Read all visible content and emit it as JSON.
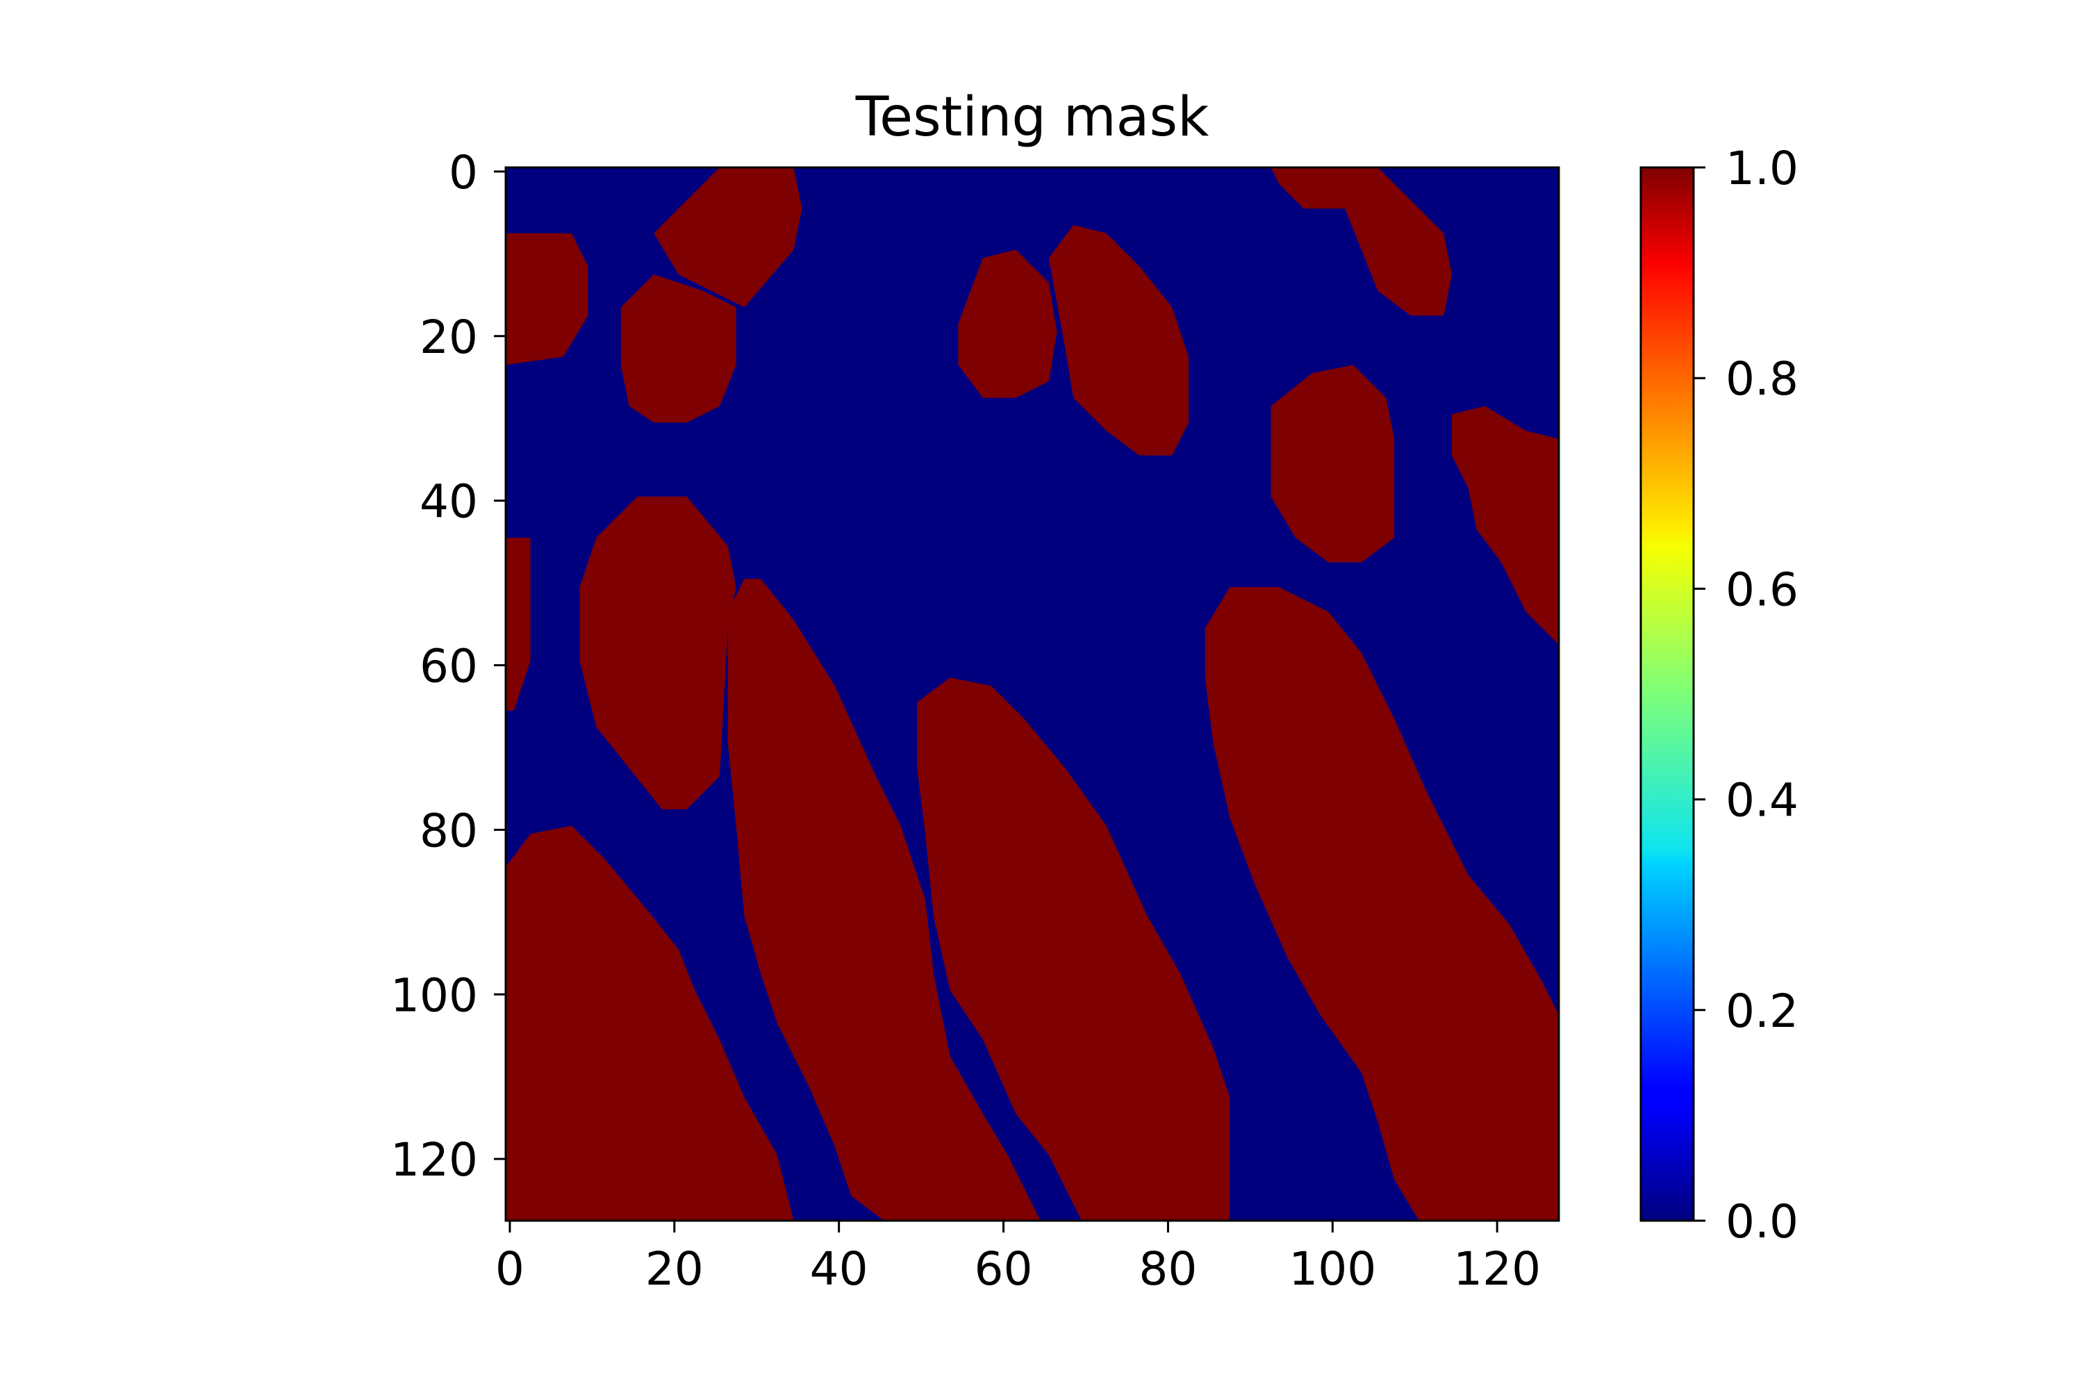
{
  "chart_data": {
    "type": "heatmap",
    "title": "Testing mask",
    "xlabel": "",
    "ylabel": "",
    "grid": false,
    "colormap": "jet",
    "image_shape": [
      128,
      128
    ],
    "xlim": [
      -0.5,
      127.5
    ],
    "ylim": [
      127.5,
      -0.5
    ],
    "x_ticks": [
      0,
      20,
      40,
      60,
      80,
      100,
      120
    ],
    "x_tick_labels": [
      "0",
      "20",
      "40",
      "60",
      "80",
      "100",
      "120"
    ],
    "y_ticks": [
      0,
      20,
      40,
      60,
      80,
      100,
      120
    ],
    "y_tick_labels": [
      "0",
      "20",
      "40",
      "60",
      "80",
      "100",
      "120"
    ],
    "colorbar": {
      "range": [
        0.0,
        1.0
      ],
      "ticks": [
        0.0,
        0.2,
        0.4,
        0.6,
        0.8,
        1.0
      ],
      "tick_labels": [
        "0.0",
        "0.2",
        "0.4",
        "0.6",
        "0.8",
        "1.0"
      ]
    },
    "value_colors": {
      "0": "#00007f",
      "1": "#7f0000"
    },
    "background_value": 0,
    "mask_regions_value_1": [
      {
        "name": "region-1",
        "polygon": [
          [
            0,
            8
          ],
          [
            8,
            8
          ],
          [
            10,
            12
          ],
          [
            10,
            18
          ],
          [
            7,
            23
          ],
          [
            0,
            24
          ]
        ]
      },
      {
        "name": "region-2",
        "polygon": [
          [
            18,
            8
          ],
          [
            26,
            0
          ],
          [
            35,
            0
          ],
          [
            36,
            5
          ],
          [
            35,
            10
          ],
          [
            29,
            17
          ],
          [
            21,
            13
          ]
        ]
      },
      {
        "name": "region-3",
        "polygon": [
          [
            14,
            17
          ],
          [
            18,
            13
          ],
          [
            24,
            15
          ],
          [
            28,
            17
          ],
          [
            28,
            24
          ],
          [
            26,
            29
          ],
          [
            22,
            31
          ],
          [
            18,
            31
          ],
          [
            15,
            29
          ],
          [
            14,
            24
          ]
        ]
      },
      {
        "name": "region-4",
        "polygon": [
          [
            55,
            19
          ],
          [
            58,
            11
          ],
          [
            62,
            10
          ],
          [
            66,
            14
          ],
          [
            67,
            20
          ],
          [
            66,
            26
          ],
          [
            62,
            28
          ],
          [
            58,
            28
          ],
          [
            55,
            24
          ]
        ]
      },
      {
        "name": "region-5",
        "polygon": [
          [
            66,
            11
          ],
          [
            69,
            7
          ],
          [
            73,
            8
          ],
          [
            77,
            12
          ],
          [
            81,
            17
          ],
          [
            83,
            23
          ],
          [
            83,
            31
          ],
          [
            81,
            35
          ],
          [
            77,
            35
          ],
          [
            73,
            32
          ],
          [
            69,
            28
          ],
          [
            68,
            22
          ]
        ]
      },
      {
        "name": "region-6",
        "polygon": [
          [
            93,
            0
          ],
          [
            106,
            0
          ],
          [
            111,
            5
          ],
          [
            114,
            8
          ],
          [
            115,
            13
          ],
          [
            114,
            18
          ],
          [
            110,
            18
          ],
          [
            106,
            15
          ],
          [
            104,
            10
          ],
          [
            102,
            5
          ],
          [
            97,
            5
          ],
          [
            94,
            2
          ]
        ]
      },
      {
        "name": "region-7",
        "polygon": [
          [
            93,
            29
          ],
          [
            98,
            25
          ],
          [
            103,
            24
          ],
          [
            107,
            28
          ],
          [
            108,
            33
          ],
          [
            108,
            45
          ],
          [
            104,
            48
          ],
          [
            100,
            48
          ],
          [
            96,
            45
          ],
          [
            93,
            40
          ]
        ]
      },
      {
        "name": "region-8",
        "polygon": [
          [
            115,
            30
          ],
          [
            119,
            29
          ],
          [
            124,
            32
          ],
          [
            128,
            33
          ],
          [
            128,
            58
          ],
          [
            124,
            54
          ],
          [
            121,
            48
          ],
          [
            118,
            44
          ],
          [
            117,
            39
          ],
          [
            115,
            35
          ]
        ]
      },
      {
        "name": "region-9",
        "polygon": [
          [
            0,
            45
          ],
          [
            3,
            45
          ],
          [
            3,
            60
          ],
          [
            1,
            66
          ],
          [
            0,
            66
          ]
        ]
      },
      {
        "name": "region-10",
        "polygon": [
          [
            9,
            51
          ],
          [
            11,
            45
          ],
          [
            16,
            40
          ],
          [
            22,
            40
          ],
          [
            27,
            46
          ],
          [
            28,
            51
          ],
          [
            27,
            56
          ],
          [
            26,
            74
          ],
          [
            22,
            78
          ],
          [
            19,
            78
          ],
          [
            15,
            73
          ],
          [
            11,
            68
          ],
          [
            9,
            60
          ]
        ]
      },
      {
        "name": "region-11",
        "polygon": [
          [
            27,
            54
          ],
          [
            29,
            50
          ],
          [
            31,
            50
          ],
          [
            35,
            55
          ],
          [
            40,
            63
          ],
          [
            45,
            74
          ],
          [
            48,
            80
          ],
          [
            51,
            89
          ],
          [
            52,
            98
          ],
          [
            54,
            108
          ],
          [
            58,
            115
          ],
          [
            61,
            120
          ],
          [
            65,
            128
          ],
          [
            46,
            128
          ],
          [
            42,
            125
          ],
          [
            40,
            119
          ],
          [
            37,
            112
          ],
          [
            33,
            104
          ],
          [
            31,
            98
          ],
          [
            29,
            91
          ],
          [
            28,
            80
          ],
          [
            27,
            70
          ]
        ]
      },
      {
        "name": "region-12",
        "polygon": [
          [
            50,
            65
          ],
          [
            54,
            62
          ],
          [
            59,
            63
          ],
          [
            63,
            67
          ],
          [
            68,
            73
          ],
          [
            73,
            80
          ],
          [
            78,
            91
          ],
          [
            82,
            98
          ],
          [
            86,
            107
          ],
          [
            88,
            113
          ],
          [
            88,
            128
          ],
          [
            70,
            128
          ],
          [
            66,
            120
          ],
          [
            62,
            115
          ],
          [
            58,
            106
          ],
          [
            54,
            100
          ],
          [
            52,
            91
          ],
          [
            51,
            81
          ],
          [
            50,
            73
          ]
        ]
      },
      {
        "name": "region-13",
        "polygon": [
          [
            85,
            56
          ],
          [
            88,
            51
          ],
          [
            94,
            51
          ],
          [
            100,
            54
          ],
          [
            104,
            59
          ],
          [
            108,
            67
          ],
          [
            112,
            76
          ],
          [
            117,
            86
          ],
          [
            122,
            92
          ],
          [
            126,
            99
          ],
          [
            128,
            103
          ],
          [
            128,
            128
          ],
          [
            111,
            128
          ],
          [
            108,
            123
          ],
          [
            106,
            116
          ],
          [
            104,
            110
          ],
          [
            99,
            103
          ],
          [
            95,
            96
          ],
          [
            91,
            87
          ],
          [
            88,
            79
          ],
          [
            86,
            70
          ],
          [
            85,
            62
          ]
        ]
      },
      {
        "name": "region-14",
        "polygon": [
          [
            0,
            85
          ],
          [
            3,
            81
          ],
          [
            8,
            80
          ],
          [
            12,
            84
          ],
          [
            17,
            90
          ],
          [
            21,
            95
          ],
          [
            23,
            100
          ],
          [
            26,
            106
          ],
          [
            29,
            113
          ],
          [
            33,
            120
          ],
          [
            35,
            128
          ],
          [
            0,
            128
          ]
        ]
      }
    ]
  }
}
